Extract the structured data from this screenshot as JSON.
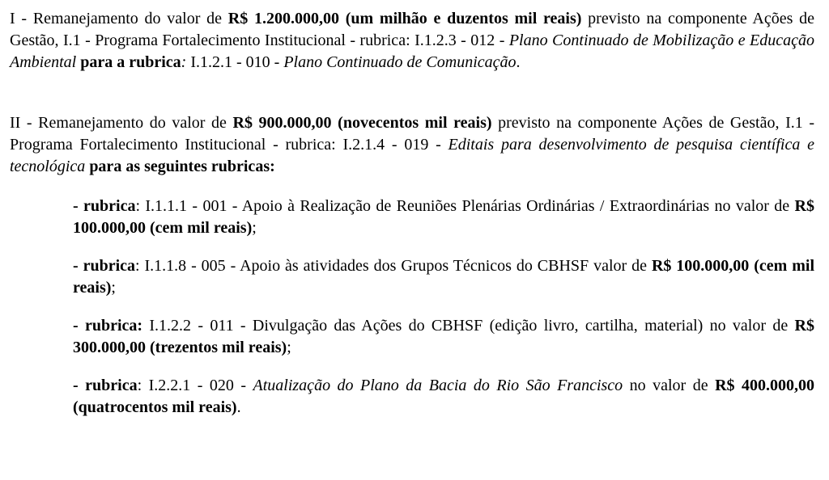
{
  "p1": {
    "t1": "I - Remanejamento do valor de ",
    "t2": "R$ 1.200.000,00 (um milhão e duzentos mil reais)",
    "t3": " previsto na componente Ações de Gestão, I.1 - Programa Fortalecimento Institucional - rubrica: I.1.2.3 - 012 - ",
    "t4": "Plano Continuado de Mobilização e Educação Ambiental ",
    "t5": "para a rubrica",
    "t6": ": ",
    "t7": "I.1.2.1 - 010 - ",
    "t8": "Plano Continuado de Comunicação",
    "t9": "."
  },
  "p2": {
    "t1": "II - Remanejamento do valor de ",
    "t2": "R$ 900.000,00 (novecentos mil reais)",
    "t3": " previsto na componente Ações de Gestão, I.1 - Programa Fortalecimento Institucional - rubrica: I.2.1.4 - 019 - ",
    "t4": "Editais para desenvolvimento de pesquisa científica e tecnológica ",
    "t5": "para as seguintes rubricas:"
  },
  "s1": {
    "t1": "- ",
    "t2": "rubrica",
    "t3": ": I.1.1.1  - 001 - Apoio à Realização de Reuniões Plenárias Ordinárias / Extraordinárias no valor de ",
    "t4": "R$ 100.000,00 (cem mil reais)",
    "t5": ";"
  },
  "s2": {
    "t1": "- ",
    "t2": "rubrica",
    "t3": ": I.1.1.8  - 005 - Apoio às atividades dos Grupos Técnicos do CBHSF valor de ",
    "t4": "R$ 100.000,00 (cem mil reais)",
    "t5": ";"
  },
  "s3": {
    "t1": "- ",
    "t2": "rubrica:",
    "t3": " I.1.2.2 - 011 - Divulgação das Ações do CBHSF (edição livro, cartilha, material) no valor de ",
    "t4": "R$ 300.000,00 (trezentos mil reais)",
    "t5": ";"
  },
  "s4": {
    "t1": "- ",
    "t2": "rubrica",
    "t3": ": I.2.2.1 - 020 - ",
    "t4": "Atualização do Plano da Bacia do Rio São Francisco",
    "t5": " no valor de ",
    "t6": "R$ 400.000,00 (quatrocentos mil reais)",
    "t7": "."
  },
  "style": {
    "font_family": "Times New Roman",
    "font_size_pt": 15,
    "text_color": "#000000",
    "background_color": "#ffffff"
  }
}
